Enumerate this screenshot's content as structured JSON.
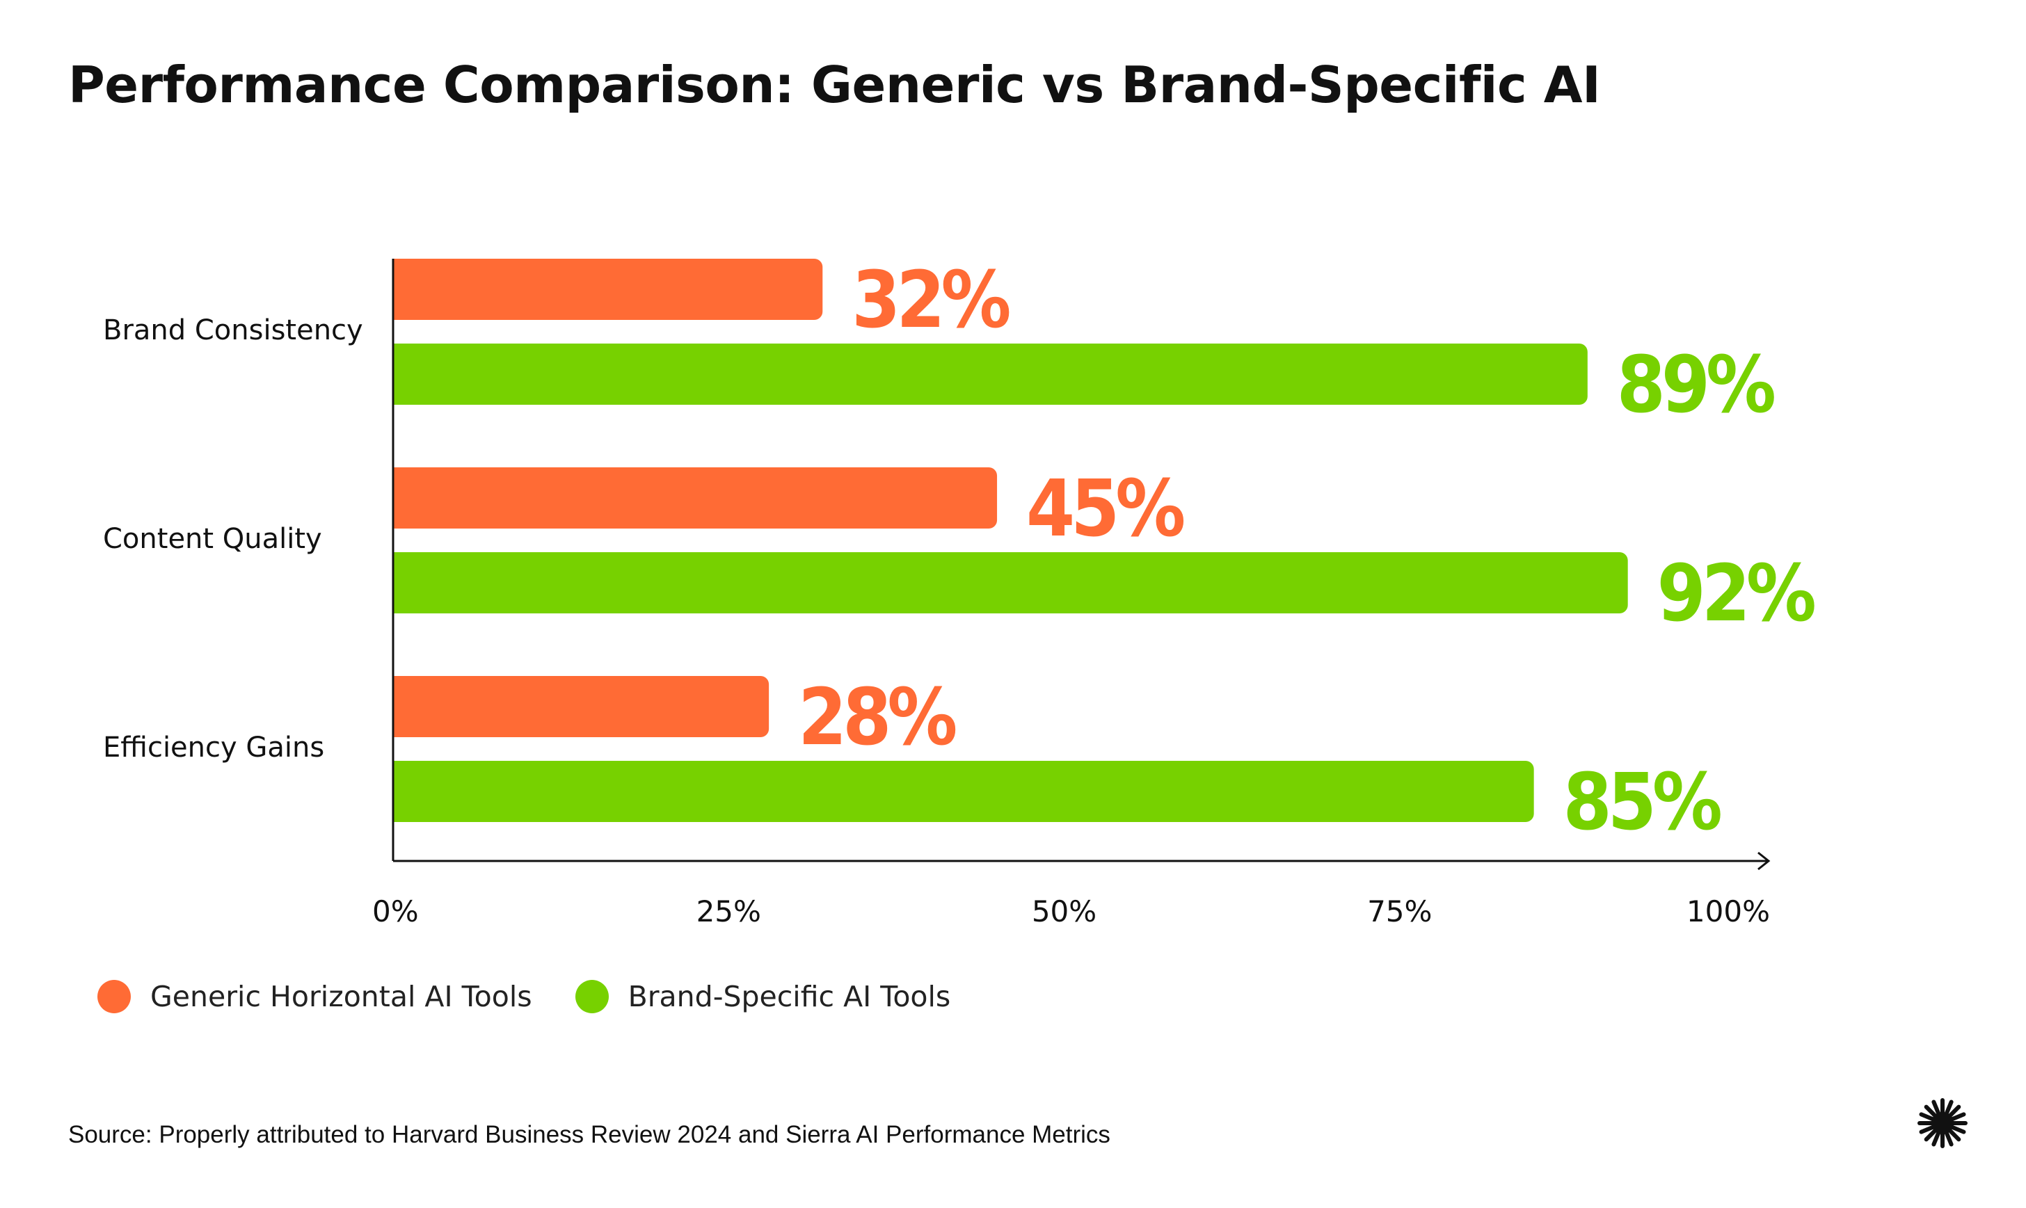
{
  "chart_data": {
    "type": "bar",
    "orientation": "horizontal",
    "title": "Performance Comparison: Generic vs Brand-Specific AI",
    "categories": [
      "Brand Consistency",
      "Content Quality",
      "Efficiency Gains"
    ],
    "series": [
      {
        "name": "Generic Horizontal AI Tools",
        "color": "#FF6B35",
        "values": [
          32,
          45,
          28
        ],
        "labels": [
          "32%",
          "45%",
          "28%"
        ]
      },
      {
        "name": "Brand-Specific AI Tools",
        "color": "#77D100",
        "values": [
          89,
          92,
          85
        ],
        "labels": [
          "89%",
          "92%",
          "85%"
        ]
      }
    ],
    "xlim": [
      0,
      100
    ],
    "xticks": [
      0,
      25,
      50,
      75,
      100
    ],
    "xtick_labels": [
      "0%",
      "25%",
      "50%",
      "75%",
      "100%"
    ],
    "xlabel": "",
    "ylabel": "",
    "grid": false,
    "legend_position": "bottom-left"
  },
  "source": "Source: Properly attributed to Harvard Business Review 2024 and Sierra AI Performance Metrics",
  "logo_icon": "asterisk-burst-icon"
}
